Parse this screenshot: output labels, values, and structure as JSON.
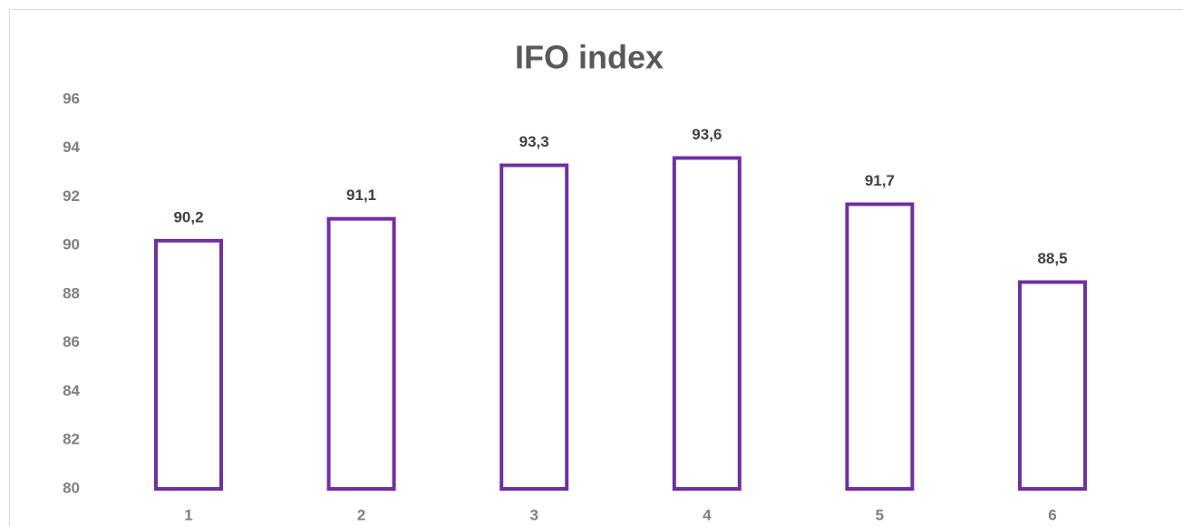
{
  "chart_data": {
    "type": "bar",
    "title": "IFO index",
    "categories": [
      "1",
      "2",
      "3",
      "4",
      "5",
      "6"
    ],
    "values": [
      90.2,
      91.1,
      93.3,
      93.6,
      91.7,
      88.5
    ],
    "value_labels": [
      "90,2",
      "91,1",
      "93,3",
      "93,6",
      "91,7",
      "88,5"
    ],
    "color": "#7030a0",
    "ylim": [
      80,
      96
    ],
    "yticks": [
      80,
      82,
      84,
      86,
      88,
      90,
      92,
      94,
      96
    ],
    "grid": false
  }
}
